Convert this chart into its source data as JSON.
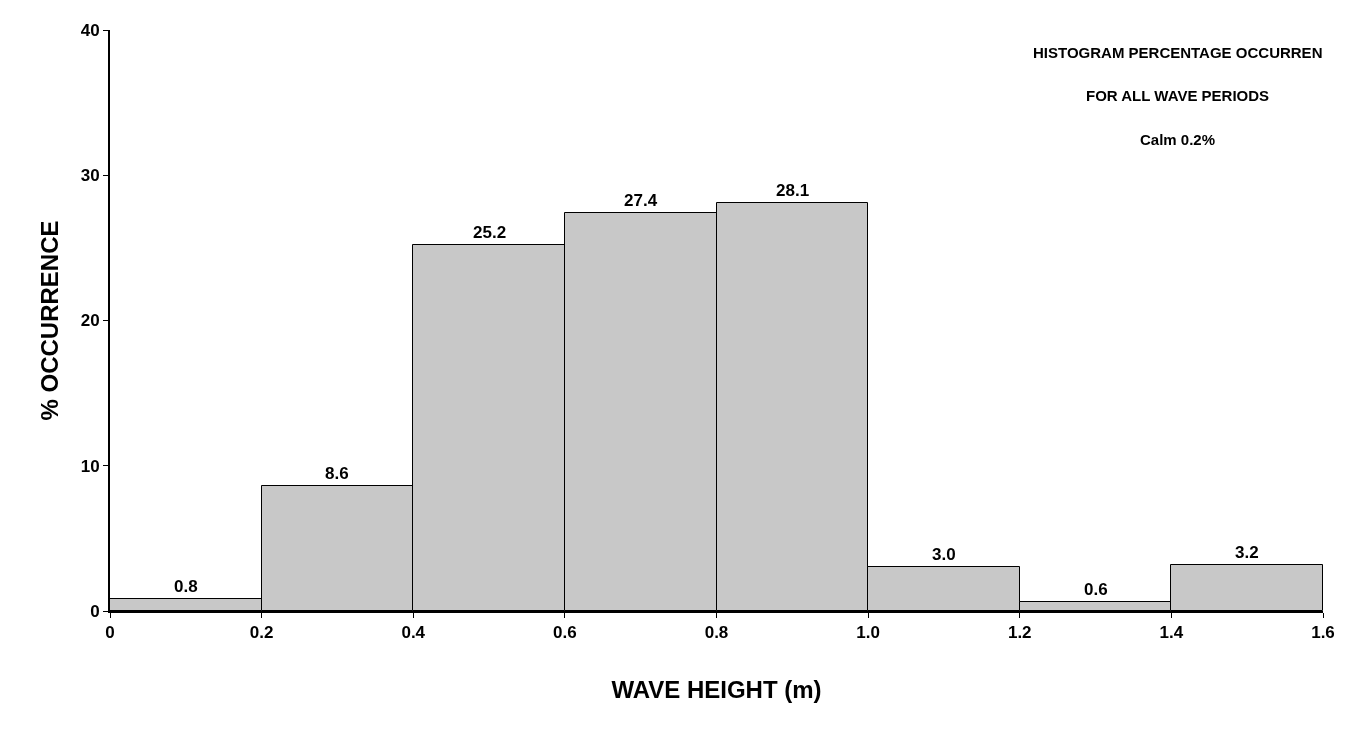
{
  "chart_data": {
    "type": "histogram",
    "xlabel": "WAVE HEIGHT (m)",
    "ylabel": "% OCCURRENCE",
    "annotations": [
      "HISTOGRAM PERCENTAGE OCCURREN",
      "FOR ALL WAVE PERIODS",
      "Calm 0.2%"
    ],
    "bins": [
      0,
      0.2,
      0.4,
      0.6,
      0.8,
      1.0,
      1.2,
      1.4,
      1.6
    ],
    "values": [
      0.8,
      8.6,
      25.2,
      27.4,
      28.1,
      3.0,
      0.6,
      3.2
    ],
    "value_labels": [
      "0.8",
      "8.6",
      "25.2",
      "27.4",
      "28.1",
      "3.0",
      "0.6",
      "3.2"
    ],
    "color": "#c8c8c8",
    "xlim": [
      0,
      1.6
    ],
    "xticks": [
      0,
      0.2,
      0.4,
      0.6,
      0.8,
      {
        "value": 1.0,
        "label": "1.0"
      },
      1.2,
      1.4,
      1.6
    ],
    "ylim": [
      0,
      40
    ],
    "yticks": [
      0,
      10,
      20,
      30,
      40
    ]
  }
}
